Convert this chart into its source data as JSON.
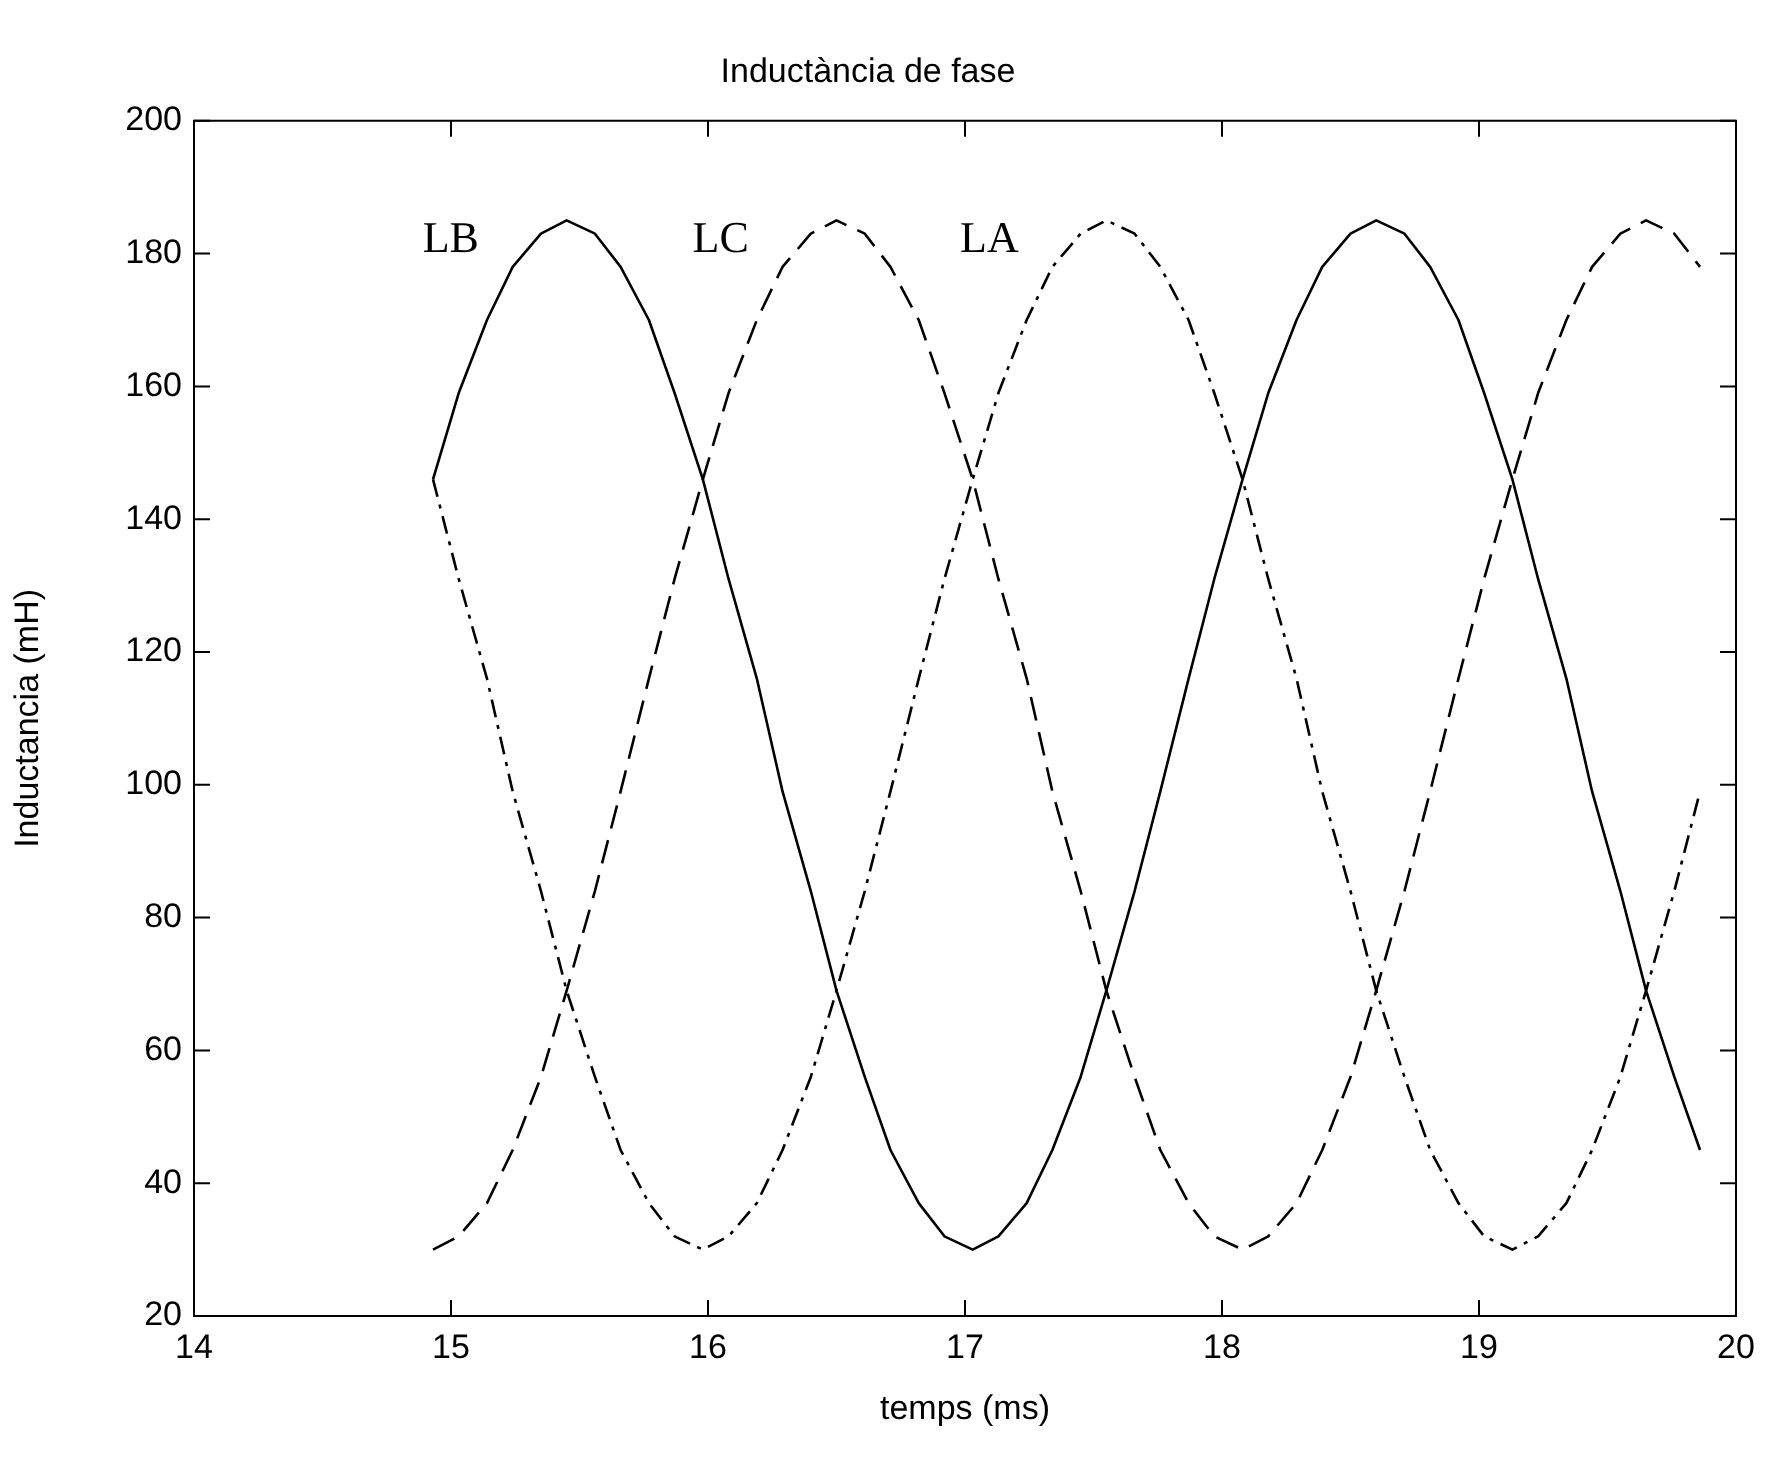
{
  "chart_data": {
    "type": "line",
    "title": "Inductància de fase",
    "xlabel": "temps (ms)",
    "ylabel": "Inductancia (mH)",
    "x": [
      14.93,
      15.03,
      15.14,
      15.24,
      15.35,
      15.45,
      15.56,
      15.66,
      15.77,
      15.87,
      15.98,
      16.08,
      16.19,
      16.29,
      16.4,
      16.5,
      16.61,
      16.71,
      16.82,
      16.92,
      17.03,
      17.13,
      17.24,
      17.34,
      17.45,
      17.55,
      17.66,
      17.76,
      17.87,
      17.97,
      18.08,
      18.18,
      18.29,
      18.39,
      18.5,
      18.6,
      18.71,
      18.81,
      18.92,
      19.02,
      19.13,
      19.23,
      19.34,
      19.44,
      19.55,
      19.65,
      19.76,
      19.86
    ],
    "series": [
      {
        "name": "LB",
        "color": "#000000",
        "line_style": "solid",
        "values": [
          146,
          159,
          170,
          178,
          183,
          185,
          183,
          178,
          170,
          159,
          146,
          131,
          116,
          99,
          84,
          69,
          56,
          45,
          37,
          32,
          30,
          32,
          37,
          45,
          56,
          69,
          84,
          99,
          116,
          131,
          146,
          159,
          170,
          178,
          183,
          185,
          183,
          178,
          170,
          159,
          146,
          131,
          116,
          99,
          84,
          69,
          56,
          45
        ]
      },
      {
        "name": "LC",
        "color": "#000000",
        "line_style": "dashed",
        "values": [
          30,
          32,
          37,
          45,
          56,
          69,
          84,
          99,
          116,
          131,
          146,
          159,
          170,
          178,
          183,
          185,
          183,
          178,
          170,
          159,
          146,
          131,
          116,
          99,
          84,
          69,
          56,
          45,
          37,
          32,
          30,
          32,
          37,
          45,
          56,
          69,
          84,
          99,
          116,
          131,
          146,
          159,
          170,
          178,
          183,
          185,
          183,
          178
        ]
      },
      {
        "name": "LA",
        "color": "#000000",
        "line_style": "dotted",
        "values": [
          146,
          131,
          116,
          99,
          84,
          69,
          56,
          45,
          37,
          32,
          30,
          32,
          37,
          45,
          56,
          69,
          84,
          99,
          116,
          131,
          146,
          159,
          170,
          178,
          183,
          185,
          183,
          178,
          170,
          159,
          146,
          131,
          116,
          99,
          84,
          69,
          56,
          45,
          37,
          32,
          30,
          32,
          37,
          45,
          56,
          69,
          84,
          99
        ]
      }
    ],
    "xlim": [
      14,
      20
    ],
    "xticks": [
      14,
      15,
      16,
      17,
      18,
      19,
      20
    ],
    "ylim": [
      20,
      200
    ],
    "yticks": [
      20,
      40,
      60,
      80,
      100,
      120,
      140,
      160,
      180,
      200
    ],
    "grid": false,
    "legend": false,
    "marker": "none"
  }
}
